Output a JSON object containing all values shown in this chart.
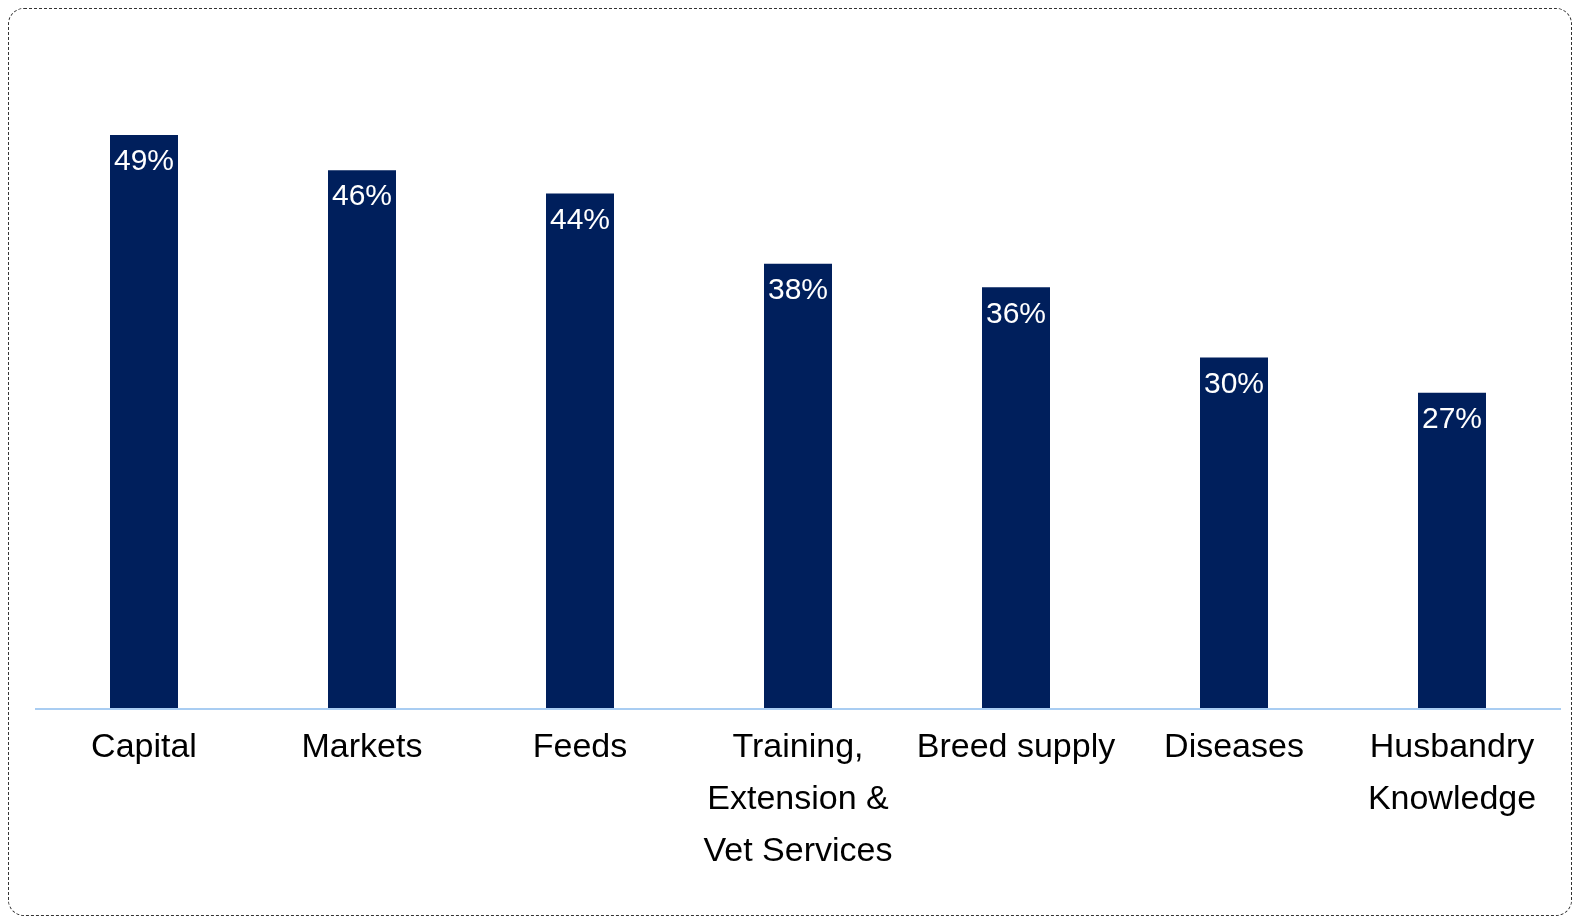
{
  "chart_data": {
    "type": "bar",
    "categories": [
      "Capital",
      "Markets",
      "Feeds",
      "Training, Extension & Vet Services",
      "Breed supply",
      "Diseases",
      "Husbandry Knowledge"
    ],
    "values": [
      49,
      46,
      44,
      38,
      36,
      30,
      27
    ],
    "value_labels": [
      "49%",
      "46%",
      "44%",
      "38%",
      "36%",
      "30%",
      "27%"
    ],
    "color": "#001f5c",
    "tick_labels": "x"
  }
}
